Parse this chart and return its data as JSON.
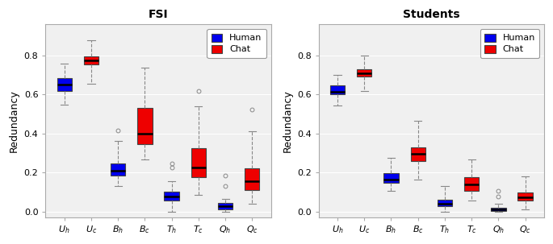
{
  "fsi": {
    "title": "FSI",
    "categories": [
      "U_h",
      "U_c",
      "B_h",
      "B_c",
      "T_h",
      "T_c",
      "Q_h",
      "Q_c"
    ],
    "boxes": [
      {
        "color": "blue",
        "whislo": 0.55,
        "q1": 0.62,
        "med": 0.65,
        "q3": 0.685,
        "whishi": 0.76,
        "fliers": []
      },
      {
        "color": "red",
        "whislo": 0.655,
        "q1": 0.755,
        "med": 0.775,
        "q3": 0.795,
        "whishi": 0.88,
        "fliers": []
      },
      {
        "color": "blue",
        "whislo": 0.13,
        "q1": 0.185,
        "med": 0.21,
        "q3": 0.245,
        "whishi": 0.36,
        "fliers": [
          0.415
        ]
      },
      {
        "color": "red",
        "whislo": 0.265,
        "q1": 0.345,
        "med": 0.4,
        "q3": 0.53,
        "whishi": 0.74,
        "fliers": []
      },
      {
        "color": "blue",
        "whislo": 0.0,
        "q1": 0.055,
        "med": 0.075,
        "q3": 0.1,
        "whishi": 0.155,
        "fliers": [
          0.225,
          0.245
        ]
      },
      {
        "color": "red",
        "whislo": 0.085,
        "q1": 0.175,
        "med": 0.225,
        "q3": 0.325,
        "whishi": 0.54,
        "fliers": [
          0.62
        ]
      },
      {
        "color": "blue",
        "whislo": 0.0,
        "q1": 0.01,
        "med": 0.028,
        "q3": 0.045,
        "whishi": 0.063,
        "fliers": [
          0.13,
          0.183
        ]
      },
      {
        "color": "red",
        "whislo": 0.038,
        "q1": 0.11,
        "med": 0.155,
        "q3": 0.22,
        "whishi": 0.41,
        "fliers": [
          0.525
        ]
      }
    ]
  },
  "students": {
    "title": "Students",
    "categories": [
      "U_h",
      "U_c",
      "B_h",
      "B_c",
      "T_h",
      "T_c",
      "Q_h",
      "Q_c"
    ],
    "boxes": [
      {
        "color": "blue",
        "whislo": 0.545,
        "q1": 0.6,
        "med": 0.615,
        "q3": 0.648,
        "whishi": 0.7,
        "fliers": []
      },
      {
        "color": "red",
        "whislo": 0.62,
        "q1": 0.695,
        "med": 0.71,
        "q3": 0.73,
        "whishi": 0.8,
        "fliers": []
      },
      {
        "color": "blue",
        "whislo": 0.105,
        "q1": 0.145,
        "med": 0.165,
        "q3": 0.195,
        "whishi": 0.275,
        "fliers": []
      },
      {
        "color": "red",
        "whislo": 0.165,
        "q1": 0.26,
        "med": 0.295,
        "q3": 0.33,
        "whishi": 0.465,
        "fliers": []
      },
      {
        "color": "blue",
        "whislo": 0.0,
        "q1": 0.028,
        "med": 0.04,
        "q3": 0.058,
        "whishi": 0.13,
        "fliers": []
      },
      {
        "color": "red",
        "whislo": 0.055,
        "q1": 0.105,
        "med": 0.14,
        "q3": 0.175,
        "whishi": 0.265,
        "fliers": []
      },
      {
        "color": "blue",
        "whislo": 0.0,
        "q1": 0.004,
        "med": 0.01,
        "q3": 0.018,
        "whishi": 0.038,
        "fliers": [
          0.075,
          0.105
        ]
      },
      {
        "color": "red",
        "whislo": 0.01,
        "q1": 0.055,
        "med": 0.073,
        "q3": 0.098,
        "whishi": 0.178,
        "fliers": []
      }
    ]
  },
  "ylabel": "Redundancy",
  "ylim": [
    -0.03,
    0.96
  ],
  "yticks": [
    0.0,
    0.2,
    0.4,
    0.6,
    0.8
  ],
  "blue_color": "#0000EE",
  "red_color": "#EE0000",
  "box_width": 0.55,
  "linewidth": 0.8,
  "median_linewidth": 1.8,
  "whisker_color": "#888888",
  "cap_color": "#888888",
  "box_edge_color": "#444444",
  "background_color": "#FFFFFF",
  "plot_bg_color": "#F0F0F0",
  "title_fontsize": 10,
  "axis_fontsize": 8,
  "ylabel_fontsize": 9,
  "legend_fontsize": 8
}
